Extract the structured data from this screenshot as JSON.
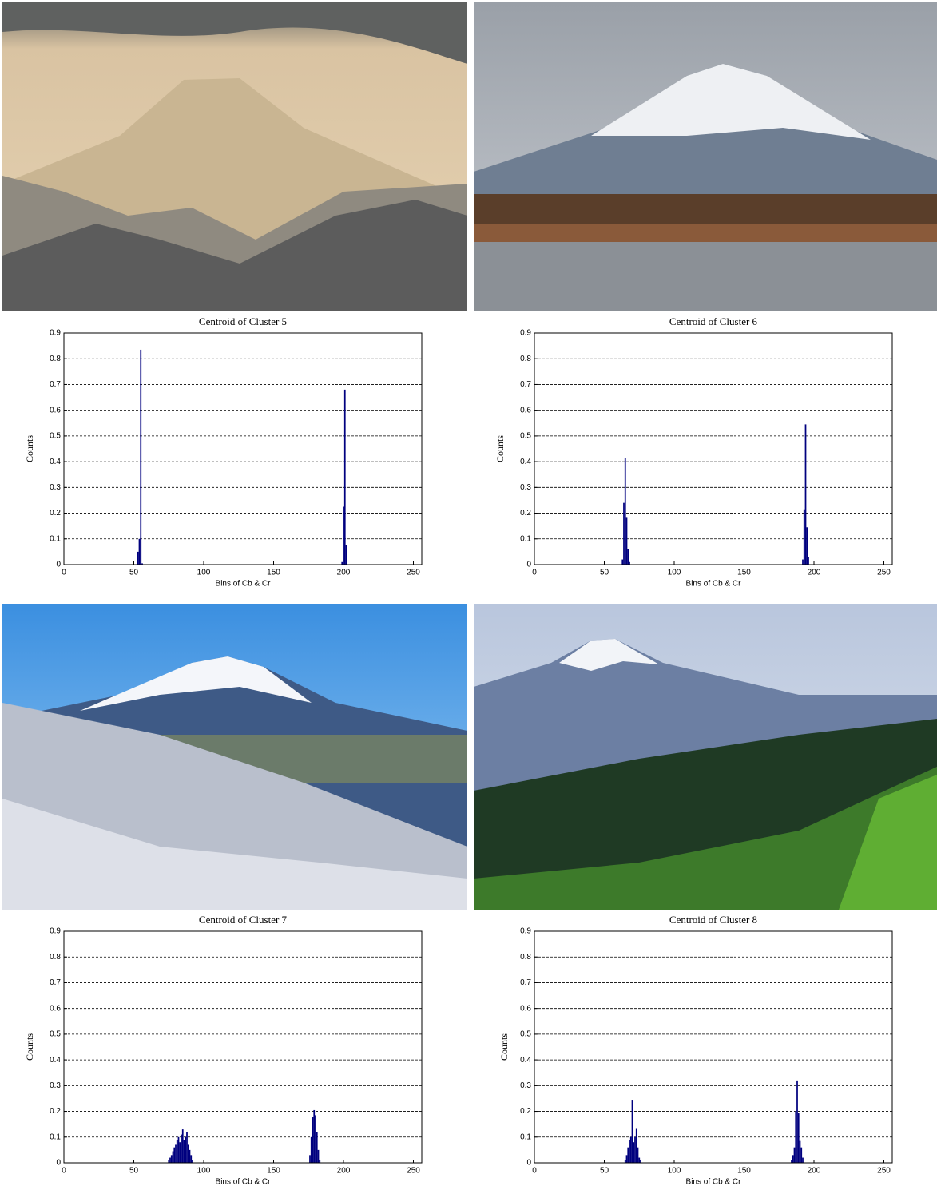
{
  "chart_data": [
    {
      "type": "bar",
      "title": "Centroid of Cluster 5",
      "xlabel": "Bins of Cb & Cr",
      "ylabel": "Counts",
      "color": "#00007f",
      "grid": true,
      "x": [
        53,
        54,
        55,
        56,
        199,
        200,
        201,
        202
      ],
      "values": [
        0.05,
        0.1,
        0.835,
        0.005,
        0.01,
        0.225,
        0.68,
        0.075
      ],
      "xlim": [
        0,
        256
      ],
      "xticks": [
        0,
        50,
        100,
        150,
        200,
        250
      ],
      "ylim": [
        0,
        0.9
      ],
      "yticks": [
        0,
        0.1,
        0.2,
        0.3,
        0.4,
        0.5,
        0.6,
        0.7,
        0.8,
        0.9
      ]
    },
    {
      "type": "bar",
      "title": "Centroid of Cluster 6",
      "xlabel": "Bins of Cb & Cr",
      "ylabel": "Counts",
      "color": "#00007f",
      "grid": true,
      "x": [
        63,
        64,
        65,
        66,
        67,
        68,
        192,
        193,
        194,
        195,
        196
      ],
      "values": [
        0.02,
        0.24,
        0.415,
        0.185,
        0.06,
        0.01,
        0.02,
        0.215,
        0.545,
        0.145,
        0.03
      ],
      "xlim": [
        0,
        256
      ],
      "xticks": [
        0,
        50,
        100,
        150,
        200,
        250
      ],
      "ylim": [
        0,
        0.9
      ],
      "yticks": [
        0,
        0.1,
        0.2,
        0.3,
        0.4,
        0.5,
        0.6,
        0.7,
        0.8,
        0.9
      ]
    },
    {
      "type": "bar",
      "title": "Centroid of Cluster 7",
      "xlabel": "Bins of Cb & Cr",
      "ylabel": "Counts",
      "color": "#00007f",
      "grid": true,
      "x": [
        75,
        76,
        77,
        78,
        79,
        80,
        81,
        82,
        83,
        84,
        85,
        86,
        87,
        88,
        89,
        90,
        91,
        92,
        176,
        177,
        178,
        179,
        180,
        181,
        182,
        183
      ],
      "values": [
        0.01,
        0.02,
        0.03,
        0.045,
        0.06,
        0.07,
        0.09,
        0.1,
        0.08,
        0.11,
        0.13,
        0.09,
        0.1,
        0.12,
        0.07,
        0.05,
        0.03,
        0.01,
        0.03,
        0.1,
        0.18,
        0.205,
        0.185,
        0.12,
        0.05,
        0.01
      ],
      "xlim": [
        0,
        256
      ],
      "xticks": [
        0,
        50,
        100,
        150,
        200,
        250
      ],
      "ylim": [
        0,
        0.9
      ],
      "yticks": [
        0,
        0.1,
        0.2,
        0.3,
        0.4,
        0.5,
        0.6,
        0.7,
        0.8,
        0.9
      ]
    },
    {
      "type": "bar",
      "title": "Centroid of Cluster 8",
      "xlabel": "Bins of Cb & Cr",
      "ylabel": "Counts",
      "color": "#00007f",
      "grid": true,
      "x": [
        65,
        66,
        67,
        68,
        69,
        70,
        71,
        72,
        73,
        74,
        75,
        76,
        184,
        185,
        186,
        187,
        188,
        189,
        190,
        191,
        192
      ],
      "values": [
        0.01,
        0.03,
        0.06,
        0.09,
        0.1,
        0.245,
        0.08,
        0.1,
        0.135,
        0.06,
        0.02,
        0.01,
        0.01,
        0.03,
        0.06,
        0.2,
        0.32,
        0.195,
        0.085,
        0.06,
        0.02
      ],
      "xlim": [
        0,
        256
      ],
      "xticks": [
        0,
        50,
        100,
        150,
        200,
        250
      ],
      "ylim": [
        0,
        0.9
      ],
      "yticks": [
        0,
        0.1,
        0.2,
        0.3,
        0.4,
        0.5,
        0.6,
        0.7,
        0.8,
        0.9
      ]
    }
  ]
}
